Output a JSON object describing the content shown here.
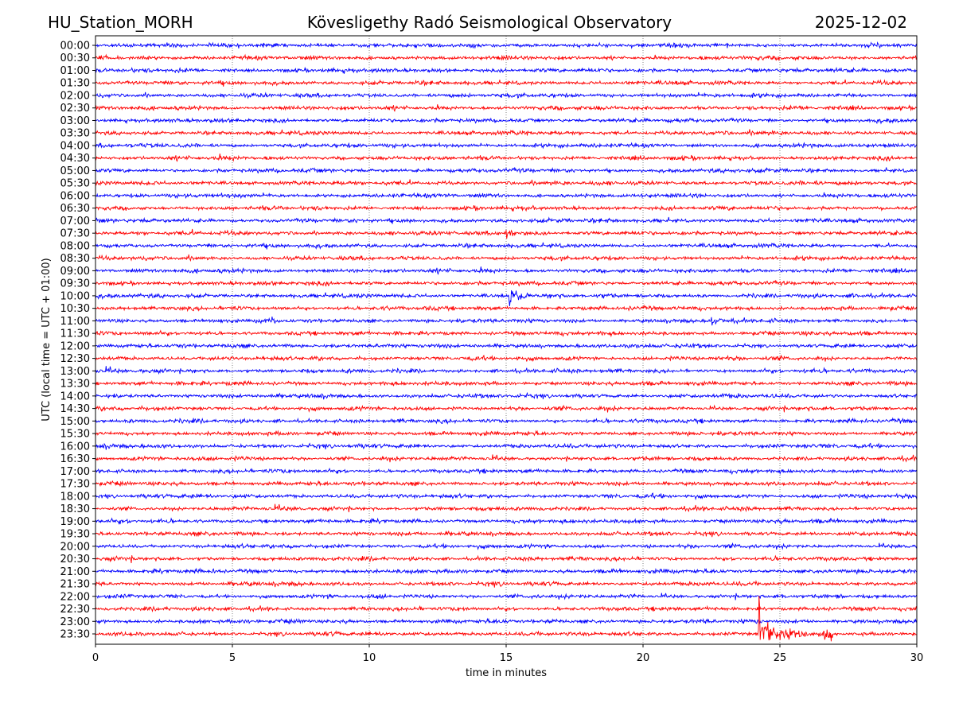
{
  "header": {
    "station": "HU_Station_MORH",
    "observatory": "Kövesligethy Radó Seismological Observatory",
    "date": "2025-12-02"
  },
  "chart_data": {
    "type": "line",
    "title": "Kövesligethy Radó Seismological Observatory",
    "xlabel": "time in minutes",
    "ylabel": "UTC (local time = UTC + 01:00)",
    "xlim": [
      0,
      30
    ],
    "x_ticks": [
      "0",
      "5",
      "10",
      "15",
      "20",
      "25",
      "30"
    ],
    "grid": "vertical dotted at x ticks",
    "row_labels": [
      "00:00",
      "00:30",
      "01:00",
      "01:30",
      "02:00",
      "02:30",
      "03:00",
      "03:30",
      "04:00",
      "04:30",
      "05:00",
      "05:30",
      "06:00",
      "06:30",
      "07:00",
      "07:30",
      "08:00",
      "08:30",
      "09:00",
      "09:30",
      "10:00",
      "10:30",
      "11:00",
      "11:30",
      "12:00",
      "12:30",
      "13:00",
      "13:30",
      "14:00",
      "14:30",
      "15:00",
      "15:30",
      "16:00",
      "16:30",
      "17:00",
      "17:30",
      "18:00",
      "18:30",
      "19:00",
      "19:30",
      "20:00",
      "20:30",
      "21:00",
      "21:30",
      "22:00",
      "22:30",
      "23:00",
      "23:30"
    ],
    "series_colors": [
      "#0000ff",
      "#ff0000"
    ],
    "events": [
      {
        "row": "07:30",
        "start_min": 15.0,
        "duration_min": 0.8,
        "amplitude": 3
      },
      {
        "row": "10:00",
        "start_min": 15.1,
        "duration_min": 1.0,
        "amplitude": 8
      },
      {
        "row": "11:00",
        "start_min": 6.4,
        "duration_min": 0.6,
        "amplitude": 3
      },
      {
        "row": "11:00",
        "start_min": 22.5,
        "duration_min": 0.8,
        "amplitude": 4
      },
      {
        "row": "23:30",
        "start_min": 24.2,
        "duration_min": 3.4,
        "amplitude": 60
      }
    ]
  }
}
